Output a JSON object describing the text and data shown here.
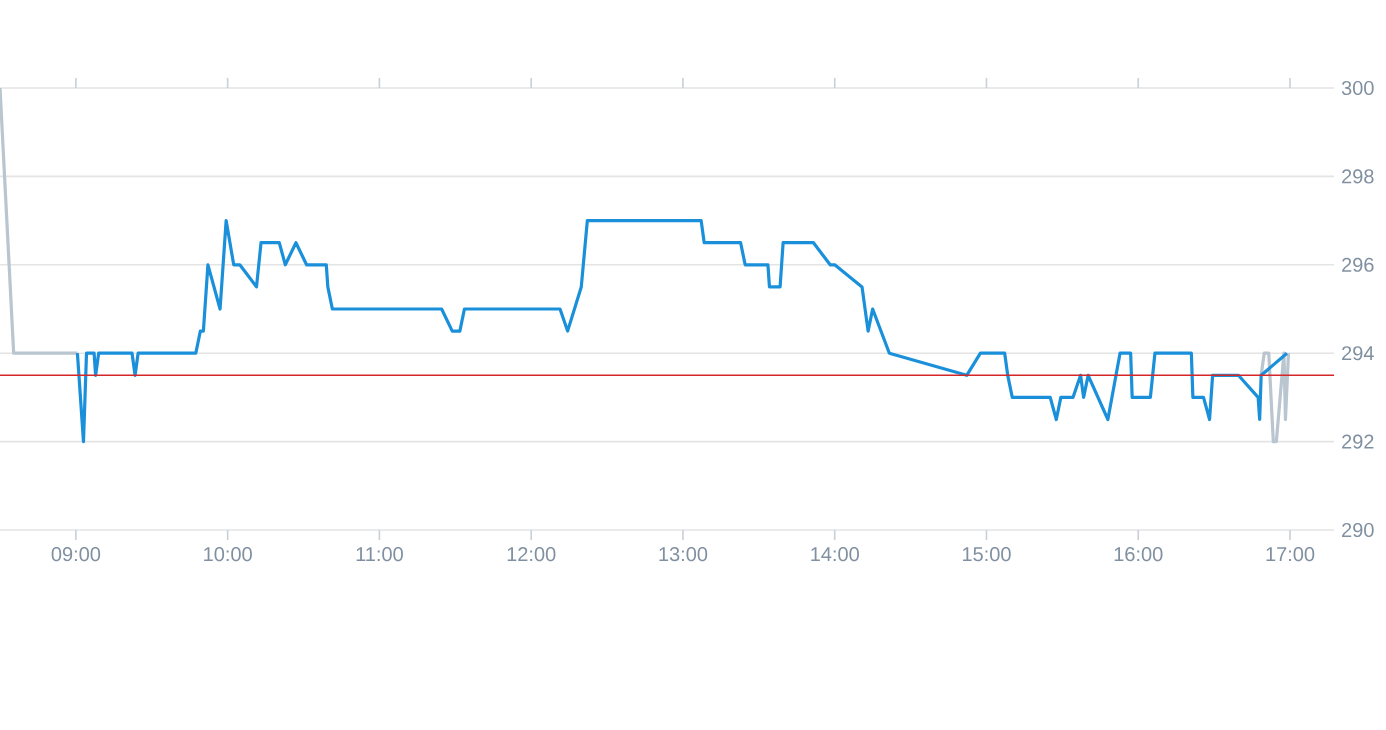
{
  "chart_data": {
    "type": "line",
    "series": [
      {
        "color": "#b9c5cf",
        "x": [
          8.5,
          8.59,
          9.01
        ],
        "values": [
          300,
          294,
          294
        ]
      },
      {
        "color": "#b9c5cf",
        "x": [
          16.81,
          16.83,
          16.86,
          16.89,
          16.91,
          16.96,
          16.97,
          16.99
        ],
        "values": [
          293.5,
          294,
          294,
          292,
          292,
          294,
          292.5,
          294
        ]
      },
      {
        "color": "#1a90db",
        "x": [
          9.01,
          9.05,
          9.07,
          9.12,
          9.13,
          9.15,
          9.37,
          9.39,
          9.41,
          9.79,
          9.82,
          9.84,
          9.87,
          9.95,
          9.99,
          10.04,
          10.08,
          10.19,
          10.22,
          10.34,
          10.38,
          10.45,
          10.52,
          10.65,
          10.66,
          10.69,
          11.41,
          11.48,
          11.53,
          11.56,
          12.19,
          12.24,
          12.33,
          12.37,
          13.12,
          13.14,
          13.38,
          13.41,
          13.56,
          13.57,
          13.64,
          13.66,
          13.86,
          13.97,
          14.0,
          14.18,
          14.22,
          14.25,
          14.36,
          14.87,
          14.96,
          15.12,
          15.14,
          15.17,
          15.42,
          15.46,
          15.49,
          15.57,
          15.62,
          15.64,
          15.67,
          15.8,
          15.88,
          15.95,
          15.96,
          16.08,
          16.11,
          16.35,
          16.36,
          16.43,
          16.47,
          16.49,
          16.66,
          16.79,
          16.8,
          16.81,
          16.98
        ],
        "values": [
          294,
          292,
          294,
          294,
          293.5,
          294,
          294,
          293.5,
          294,
          294,
          294.5,
          294.5,
          296,
          295,
          297,
          296,
          296,
          295.5,
          296.5,
          296.5,
          296,
          296.5,
          296,
          296,
          295.5,
          295,
          295,
          294.5,
          294.5,
          295,
          295,
          294.5,
          295.5,
          297,
          297,
          296.5,
          296.5,
          296,
          296,
          295.5,
          295.5,
          296.5,
          296.5,
          296,
          296,
          295.5,
          294.5,
          295,
          294,
          293.5,
          294,
          294,
          293.5,
          293,
          293,
          292.5,
          293,
          293,
          293.5,
          293,
          293.5,
          292.5,
          294,
          294,
          293,
          293,
          294,
          294,
          293,
          293,
          292.5,
          293.5,
          293.5,
          293,
          292.5,
          293.5,
          294
        ]
      }
    ],
    "xlim": [
      8.5,
      17.29
    ],
    "ylim": [
      290,
      300
    ],
    "xticks": [
      {
        "value": 9,
        "label": "09:00"
      },
      {
        "value": 10,
        "label": "10:00"
      },
      {
        "value": 11,
        "label": "11:00"
      },
      {
        "value": 12,
        "label": "12:00"
      },
      {
        "value": 13,
        "label": "13:00"
      },
      {
        "value": 14,
        "label": "14:00"
      },
      {
        "value": 15,
        "label": "15:00"
      },
      {
        "value": 16,
        "label": "16:00"
      },
      {
        "value": 17,
        "label": "17:00"
      }
    ],
    "yticks": [
      290,
      292,
      294,
      296,
      298,
      300
    ],
    "grid": "y",
    "ref_lines": [
      {
        "axis": "y",
        "value": 293.5,
        "color": "#d62728"
      }
    ]
  }
}
